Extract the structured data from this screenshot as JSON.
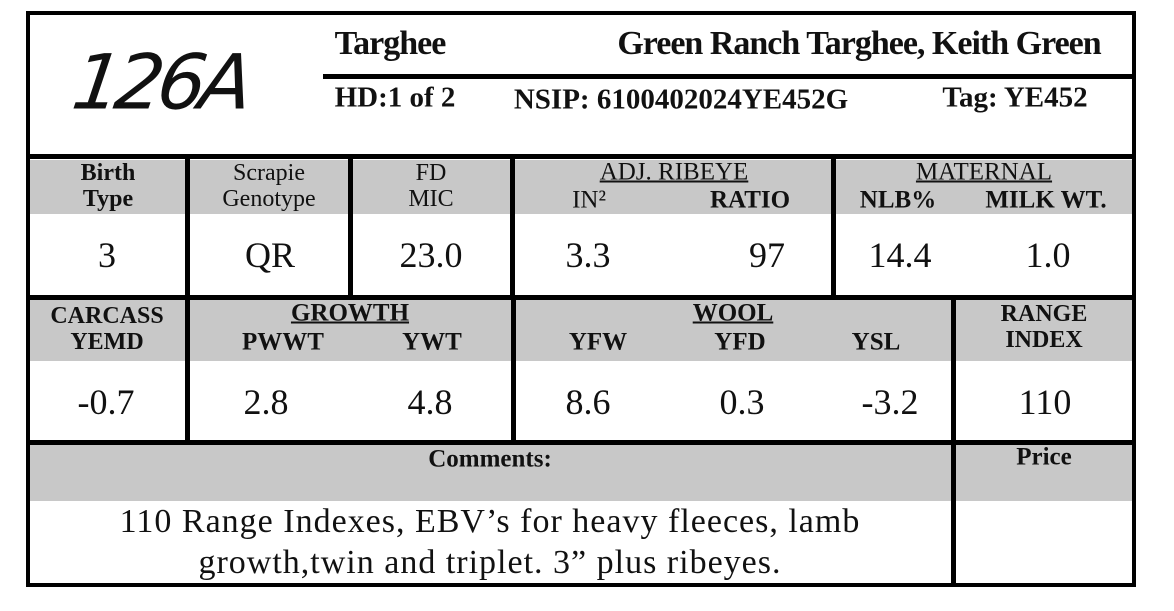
{
  "header": {
    "lot": "126A",
    "breed": "Targhee",
    "breeder": "Green Ranch Targhee, Keith Green",
    "hd": "HD:1 of 2",
    "nsip": "NSIP: 6100402024YE452G",
    "tag": "Tag: YE452"
  },
  "row1": {
    "birth_type": {
      "label": "Birth Type",
      "value": "3"
    },
    "scrapie": {
      "label": "Scrapie Genotype",
      "value": "QR"
    },
    "fd_mic": {
      "label": "FD MIC",
      "value": "23.0"
    },
    "ribeye": {
      "title": "ADJ. RIBEYE",
      "in2": {
        "label": "IN²",
        "value": "3.3"
      },
      "ratio": {
        "label": "RATIO",
        "value": "97"
      }
    },
    "maternal": {
      "title": "MATERNAL",
      "nlb": {
        "label": "NLB%",
        "value": "14.4"
      },
      "milk": {
        "label": "MILK WT.",
        "value": "1.0"
      }
    }
  },
  "row2": {
    "carcass": {
      "label": "CARCASS YEMD",
      "value": "-0.7"
    },
    "growth": {
      "title": "GROWTH",
      "pwwt": {
        "label": "PWWT",
        "value": "2.8"
      },
      "ywt": {
        "label": "YWT",
        "value": "4.8"
      }
    },
    "wool": {
      "title": "WOOL",
      "yfw": {
        "label": "YFW",
        "value": "8.6"
      },
      "yfd": {
        "label": "YFD",
        "value": "0.3"
      },
      "ysl": {
        "label": "YSL",
        "value": "-3.2"
      }
    },
    "range_index": {
      "label": "RANGE INDEX",
      "value": "110"
    }
  },
  "comments": {
    "label": "Comments:",
    "text": "110 Range Indexes, EBV’s for heavy fleeces, lamb growth,twin and triplet. 3” plus ribeyes."
  },
  "price": {
    "label": "Price"
  }
}
